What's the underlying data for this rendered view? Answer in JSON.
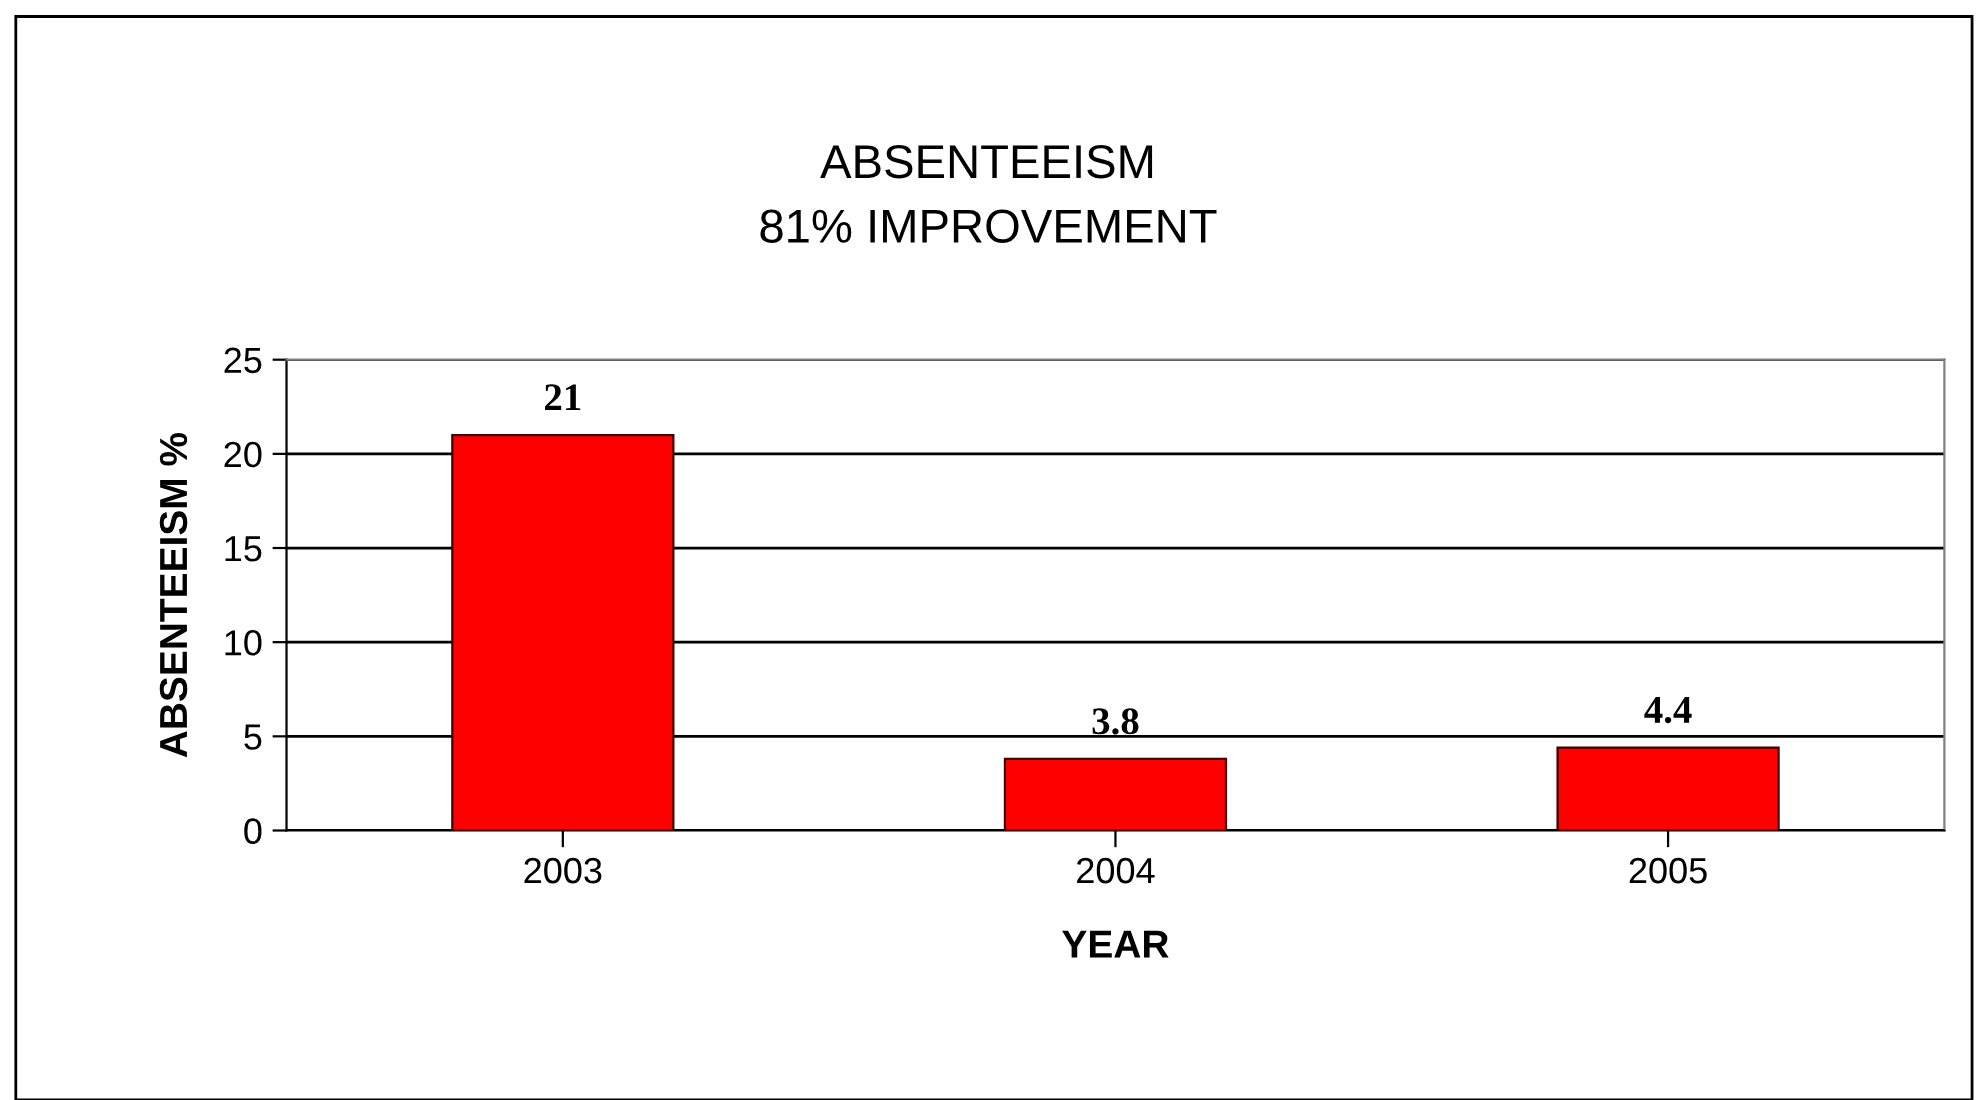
{
  "chart_data": {
    "type": "bar",
    "title": "ABSENTEEISM\n81% IMPROVEMENT",
    "xlabel": "YEAR",
    "ylabel": "ABSENTEEISM %",
    "categories": [
      "2003",
      "2004",
      "2005"
    ],
    "values": [
      21,
      3.8,
      4.4
    ],
    "color": "#ff0000",
    "ylim": [
      0,
      25
    ],
    "yticks": [
      0,
      5,
      10,
      15,
      20,
      25
    ],
    "grid": "y",
    "data_labels": true
  }
}
